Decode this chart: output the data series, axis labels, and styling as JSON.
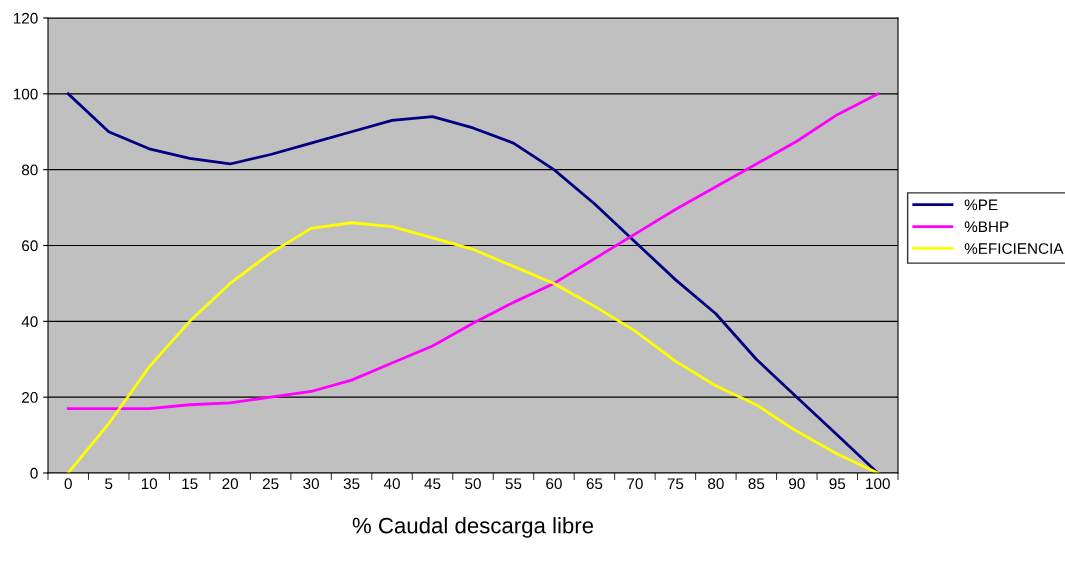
{
  "chart_data": {
    "type": "line",
    "xlabel": "% Caudal descarga libre",
    "categories": [
      "0",
      "5",
      "10",
      "15",
      "20",
      "25",
      "30",
      "35",
      "40",
      "45",
      "50",
      "55",
      "60",
      "65",
      "70",
      "75",
      "80",
      "85",
      "90",
      "95",
      "100"
    ],
    "series": [
      {
        "name": "%PE",
        "color": "#000080",
        "values": [
          100,
          90,
          85.5,
          83,
          81.5,
          84,
          87,
          90,
          93,
          94,
          91,
          87,
          80,
          71,
          61,
          51,
          42,
          30,
          20,
          10,
          0
        ]
      },
      {
        "name": "%BHP",
        "color": "#ff00ff",
        "values": [
          17,
          17,
          17,
          18,
          18.5,
          20,
          21.5,
          24.5,
          29,
          33.5,
          39.5,
          45,
          50,
          56.5,
          63,
          69.5,
          75.5,
          81.5,
          87.5,
          94.5,
          100
        ]
      },
      {
        "name": "%EFICIENCIA",
        "color": "#ffff00",
        "values": [
          0,
          13,
          28,
          40,
          50,
          58,
          64.5,
          66,
          65,
          62,
          59,
          54.5,
          50,
          44,
          37.5,
          29.5,
          23,
          18,
          11,
          5,
          0
        ]
      }
    ],
    "ylim": [
      0,
      120
    ],
    "yticks": [
      0,
      20,
      40,
      60,
      80,
      100,
      120
    ],
    "grid": "y",
    "legend": "right",
    "marker": "none",
    "line_style": "solid"
  }
}
